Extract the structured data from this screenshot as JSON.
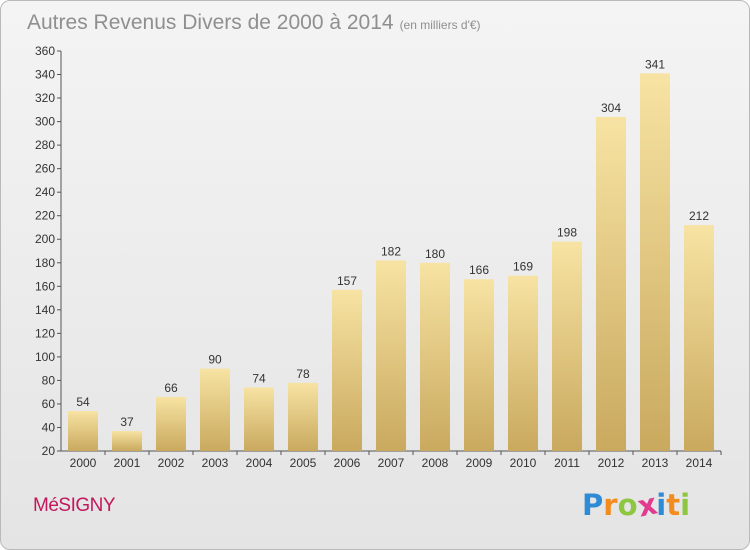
{
  "title": "Autres Revenus Divers de 2000 à 2014",
  "subtitle": "(en milliers d'€)",
  "commune": "MéSIGNY",
  "logo": {
    "letters": [
      "P",
      "r",
      "o",
      "x",
      "i",
      "t",
      "i"
    ],
    "colors": [
      "#2e8bd6",
      "#f28c1e",
      "#8dc63f",
      "#e23a8e",
      "#2e8bd6",
      "#f28c1e",
      "#8dc63f"
    ]
  },
  "colors": {
    "bar_light": "#f7e3a3",
    "bar_dark": "#c9a95e",
    "title": "#8f8f8f",
    "commune": "#c2185b"
  },
  "chart_data": {
    "type": "bar",
    "categories": [
      "2000",
      "2001",
      "2002",
      "2003",
      "2004",
      "2005",
      "2006",
      "2007",
      "2008",
      "2009",
      "2010",
      "2011",
      "2012",
      "2013",
      "2014"
    ],
    "values": [
      54,
      37,
      66,
      90,
      74,
      78,
      157,
      182,
      180,
      166,
      169,
      198,
      304,
      341,
      212
    ],
    "ylim": [
      20,
      360
    ],
    "yticks": [
      20,
      40,
      60,
      80,
      100,
      120,
      140,
      160,
      180,
      200,
      220,
      240,
      260,
      280,
      300,
      320,
      340,
      360
    ],
    "grid": false,
    "legend": "none"
  }
}
